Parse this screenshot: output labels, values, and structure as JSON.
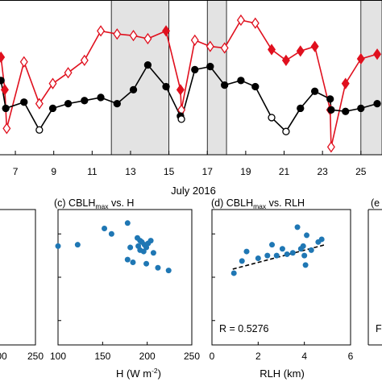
{
  "chart_data": [
    {
      "type": "line",
      "xlabel": "July 2016",
      "x_tick_labels": [
        "7",
        "9",
        "11",
        "13",
        "15",
        "17",
        "19",
        "21",
        "23",
        "25"
      ],
      "xlim": [
        6.2,
        26.1
      ],
      "ylim": [
        0,
        1
      ],
      "shaded_periods": [
        [
          12.0,
          15.0
        ],
        [
          17.0,
          18.0
        ],
        [
          25.0,
          26.1
        ]
      ],
      "series": [
        {
          "color": "#e0101e",
          "marker": "diamond",
          "points": [
            {
              "x": 6.25,
              "y": 0.63,
              "filled": true
            },
            {
              "x": 6.45,
              "y": 0.42,
              "filled": true
            },
            {
              "x": 6.55,
              "y": 0.17,
              "filled": false
            },
            {
              "x": 7.45,
              "y": 0.6,
              "filled": false
            },
            {
              "x": 8.25,
              "y": 0.33,
              "filled": false
            },
            {
              "x": 8.95,
              "y": 0.46,
              "filled": false
            },
            {
              "x": 9.75,
              "y": 0.53,
              "filled": false
            },
            {
              "x": 10.6,
              "y": 0.61,
              "filled": false
            },
            {
              "x": 11.45,
              "y": 0.8,
              "filled": false
            },
            {
              "x": 12.3,
              "y": 0.78,
              "filled": false
            },
            {
              "x": 13.15,
              "y": 0.77,
              "filled": false
            },
            {
              "x": 13.9,
              "y": 0.75,
              "filled": false
            },
            {
              "x": 14.85,
              "y": 0.8,
              "filled": true
            },
            {
              "x": 15.6,
              "y": 0.42,
              "filled": true
            },
            {
              "x": 15.65,
              "y": 0.29,
              "filled": false
            },
            {
              "x": 16.35,
              "y": 0.74,
              "filled": false
            },
            {
              "x": 17.15,
              "y": 0.7,
              "filled": false
            },
            {
              "x": 17.9,
              "y": 0.69,
              "filled": false
            },
            {
              "x": 18.75,
              "y": 0.87,
              "filled": false
            },
            {
              "x": 19.5,
              "y": 0.85,
              "filled": false
            },
            {
              "x": 20.35,
              "y": 0.68,
              "filled": true
            },
            {
              "x": 21.1,
              "y": 0.61,
              "filled": true
            },
            {
              "x": 21.85,
              "y": 0.67,
              "filled": true
            },
            {
              "x": 22.6,
              "y": 0.7,
              "filled": true
            },
            {
              "x": 23.4,
              "y": 0.29,
              "filled": true
            },
            {
              "x": 23.45,
              "y": 0.05,
              "filled": false
            },
            {
              "x": 24.2,
              "y": 0.46,
              "filled": true
            },
            {
              "x": 25.0,
              "y": 0.62,
              "filled": true
            },
            {
              "x": 25.85,
              "y": 0.65,
              "filled": true
            }
          ]
        },
        {
          "color": "#000000",
          "marker": "circle",
          "points": [
            {
              "x": 6.25,
              "y": 0.48,
              "filled": true
            },
            {
              "x": 6.5,
              "y": 0.3,
              "filled": true
            },
            {
              "x": 7.45,
              "y": 0.34,
              "filled": true
            },
            {
              "x": 8.25,
              "y": 0.16,
              "filled": false
            },
            {
              "x": 8.95,
              "y": 0.3,
              "filled": true
            },
            {
              "x": 9.75,
              "y": 0.33,
              "filled": true
            },
            {
              "x": 10.6,
              "y": 0.35,
              "filled": true
            },
            {
              "x": 11.45,
              "y": 0.37,
              "filled": true
            },
            {
              "x": 12.3,
              "y": 0.33,
              "filled": true
            },
            {
              "x": 13.15,
              "y": 0.42,
              "filled": true
            },
            {
              "x": 13.9,
              "y": 0.58,
              "filled": true
            },
            {
              "x": 14.85,
              "y": 0.44,
              "filled": true
            },
            {
              "x": 15.6,
              "y": 0.25,
              "filled": true
            },
            {
              "x": 15.65,
              "y": 0.23,
              "filled": false
            },
            {
              "x": 16.35,
              "y": 0.55,
              "filled": true
            },
            {
              "x": 17.15,
              "y": 0.57,
              "filled": true
            },
            {
              "x": 17.9,
              "y": 0.45,
              "filled": true
            },
            {
              "x": 18.75,
              "y": 0.48,
              "filled": true
            },
            {
              "x": 19.5,
              "y": 0.44,
              "filled": true
            },
            {
              "x": 20.35,
              "y": 0.24,
              "filled": false
            },
            {
              "x": 21.1,
              "y": 0.15,
              "filled": false
            },
            {
              "x": 21.85,
              "y": 0.3,
              "filled": true
            },
            {
              "x": 22.6,
              "y": 0.41,
              "filled": true
            },
            {
              "x": 23.4,
              "y": 0.36,
              "filled": true
            },
            {
              "x": 23.45,
              "y": 0.29,
              "filled": true
            },
            {
              "x": 24.2,
              "y": 0.28,
              "filled": true
            },
            {
              "x": 25.0,
              "y": 0.3,
              "filled": true
            },
            {
              "x": 25.85,
              "y": 0.33,
              "filled": true
            }
          ]
        }
      ]
    },
    {
      "type": "scatter",
      "x_tick_labels": [
        "00",
        "250"
      ],
      "xlim": [
        170,
        255
      ],
      "ylim": [
        0,
        100
      ],
      "color": "#1f77b4",
      "points": [
        {
          "x": 170,
          "y": 34
        },
        {
          "x": 171,
          "y": 22
        },
        {
          "x": 170.5,
          "y": 20
        },
        {
          "x": 170,
          "y": 10
        },
        {
          "x": 171,
          "y": 16
        },
        {
          "x": 188,
          "y": 23
        },
        {
          "x": 170,
          "y": 72
        }
      ]
    },
    {
      "type": "scatter",
      "title": "(c) CBLH",
      "title_subscript": "max",
      "title_suffix": " vs. H",
      "xlabel": "H (W m",
      "xlabel_superscript": "-2",
      "xlabel_suffix": ")",
      "x_ticks": [
        100,
        150,
        200,
        250
      ],
      "x_tick_labels": [
        "100",
        "150",
        "200",
        "250"
      ],
      "xlim": [
        100,
        250
      ],
      "ylim": [
        0,
        100
      ],
      "color": "#1f77b4",
      "points": [
        {
          "x": 100,
          "y": 73
        },
        {
          "x": 122,
          "y": 74
        },
        {
          "x": 152,
          "y": 86
        },
        {
          "x": 160,
          "y": 82
        },
        {
          "x": 178,
          "y": 90
        },
        {
          "x": 181,
          "y": 72
        },
        {
          "x": 184,
          "y": 61
        },
        {
          "x": 189,
          "y": 79
        },
        {
          "x": 192,
          "y": 77
        },
        {
          "x": 194,
          "y": 76
        },
        {
          "x": 190,
          "y": 73
        },
        {
          "x": 197,
          "y": 74
        },
        {
          "x": 196,
          "y": 69
        },
        {
          "x": 199,
          "y": 72
        },
        {
          "x": 201,
          "y": 75
        },
        {
          "x": 204,
          "y": 77
        },
        {
          "x": 207,
          "y": 68
        },
        {
          "x": 199,
          "y": 60
        },
        {
          "x": 178,
          "y": 63
        },
        {
          "x": 212,
          "y": 57
        },
        {
          "x": 224,
          "y": 55
        },
        {
          "x": 192,
          "y": 70
        }
      ]
    },
    {
      "type": "scatter",
      "title": "(d) CBLH",
      "title_subscript": "max",
      "title_suffix": " vs. RLH",
      "xlabel": "RLH (km)",
      "x_ticks": [
        0,
        2,
        4,
        6
      ],
      "x_tick_labels": [
        "0",
        "2",
        "4",
        "6"
      ],
      "xlim": [
        0,
        6
      ],
      "ylim": [
        0,
        100
      ],
      "color": "#1f77b4",
      "annotation": "R = 0.5276",
      "trend_line": {
        "x": [
          0.9,
          4.9
        ],
        "y": [
          56,
          74
        ]
      },
      "points": [
        {
          "x": 0.95,
          "y": 53
        },
        {
          "x": 1.3,
          "y": 62
        },
        {
          "x": 1.5,
          "y": 69
        },
        {
          "x": 2.0,
          "y": 64
        },
        {
          "x": 2.4,
          "y": 66
        },
        {
          "x": 2.6,
          "y": 74
        },
        {
          "x": 2.8,
          "y": 66
        },
        {
          "x": 3.05,
          "y": 71
        },
        {
          "x": 3.25,
          "y": 67
        },
        {
          "x": 3.5,
          "y": 68
        },
        {
          "x": 3.7,
          "y": 87
        },
        {
          "x": 3.85,
          "y": 71
        },
        {
          "x": 3.95,
          "y": 73
        },
        {
          "x": 4.05,
          "y": 59
        },
        {
          "x": 4.1,
          "y": 81
        },
        {
          "x": 4.3,
          "y": 70
        },
        {
          "x": 4.6,
          "y": 76
        },
        {
          "x": 4.75,
          "y": 78
        },
        {
          "x": 4.0,
          "y": 66
        }
      ]
    }
  ],
  "panel_e_title_fragment": "(e",
  "panel_e_annotation_fragment": "F"
}
